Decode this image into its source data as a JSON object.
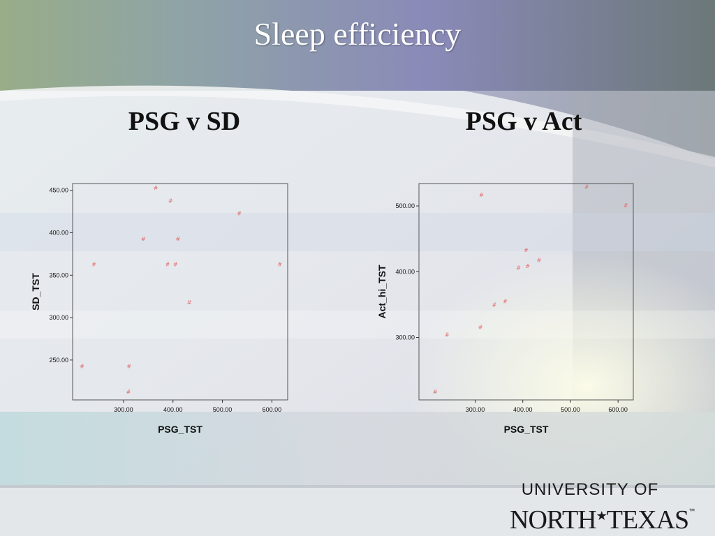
{
  "slide": {
    "title": "Sleep efficiency"
  },
  "logo": {
    "line1": "UNIVERSITY OF",
    "line2_a": "NORTH",
    "line2_star": "★",
    "line2_b": "TEXAS",
    "trademark": "™"
  },
  "chart_data": [
    {
      "type": "scatter",
      "title": "PSG v SD",
      "xlabel": "PSG_TST",
      "ylabel": "SD_TST",
      "x_ticks": [
        "300.00",
        "400.00",
        "500.00",
        "600.00"
      ],
      "y_ticks": [
        "250.00",
        "300.00",
        "350.00",
        "400.00",
        "450.00"
      ],
      "marker": "#",
      "xlim": [
        197,
        632
      ],
      "ylim": [
        203,
        458
      ],
      "points": [
        {
          "x": 216,
          "y": 243
        },
        {
          "x": 240,
          "y": 363
        },
        {
          "x": 310,
          "y": 213
        },
        {
          "x": 311,
          "y": 243
        },
        {
          "x": 340,
          "y": 393
        },
        {
          "x": 365,
          "y": 453
        },
        {
          "x": 389,
          "y": 363
        },
        {
          "x": 395,
          "y": 438
        },
        {
          "x": 405,
          "y": 363
        },
        {
          "x": 410,
          "y": 393
        },
        {
          "x": 433,
          "y": 318
        },
        {
          "x": 534,
          "y": 423
        },
        {
          "x": 616,
          "y": 363
        }
      ]
    },
    {
      "type": "scatter",
      "title": "PSG v Act",
      "xlabel": "PSG_TST",
      "ylabel": "Act_hi_TST",
      "x_ticks": [
        "300.00",
        "400.00",
        "500.00",
        "600.00"
      ],
      "y_ticks": [
        "300.00",
        "400.00",
        "500.00"
      ],
      "marker": "#",
      "xlim": [
        182,
        632
      ],
      "ylim": [
        205,
        534
      ],
      "points": [
        {
          "x": 216,
          "y": 218
        },
        {
          "x": 241,
          "y": 304
        },
        {
          "x": 311,
          "y": 316
        },
        {
          "x": 313,
          "y": 517
        },
        {
          "x": 340,
          "y": 350
        },
        {
          "x": 363,
          "y": 355
        },
        {
          "x": 391,
          "y": 406
        },
        {
          "x": 407,
          "y": 433
        },
        {
          "x": 410,
          "y": 409
        },
        {
          "x": 434,
          "y": 418
        },
        {
          "x": 534,
          "y": 529
        },
        {
          "x": 616,
          "y": 501
        }
      ]
    }
  ]
}
